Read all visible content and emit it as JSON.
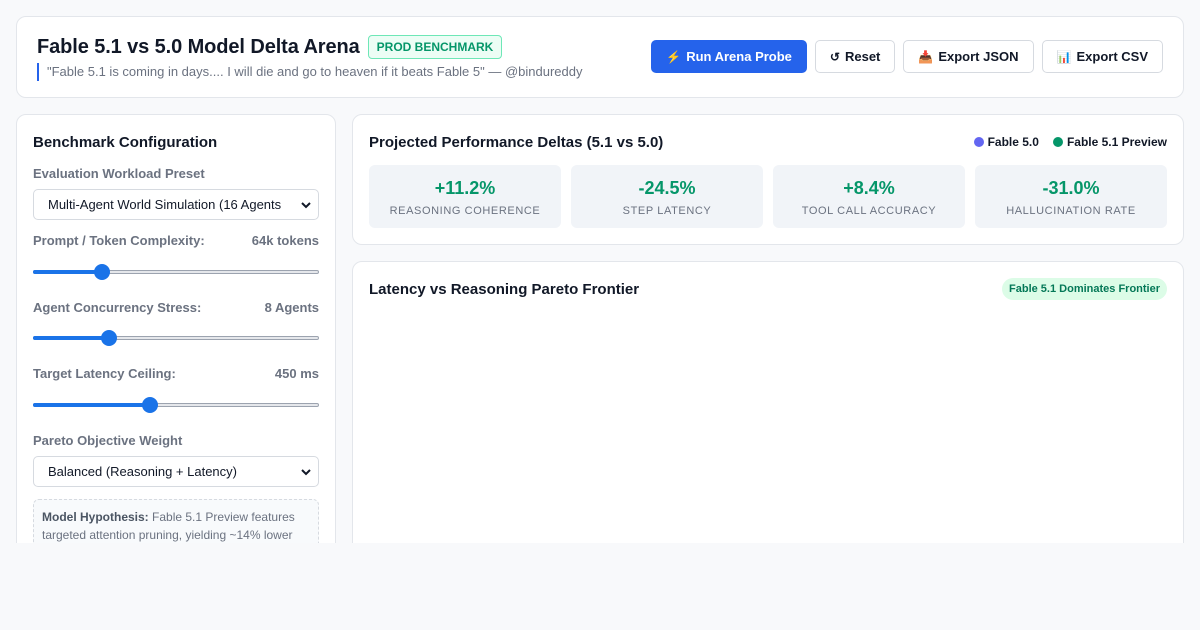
{
  "header": {
    "title": "Fable 5.1 vs 5.0 Model Delta Arena",
    "badge": "PROD BENCHMARK",
    "quote": "\"Fable 5.1 is coming in days.... I will die and go to heaven if it beats Fable 5\" — @bindureddy",
    "buttons": {
      "run": {
        "icon": "⚡",
        "label": "Run Arena Probe"
      },
      "reset": {
        "icon": "↺",
        "label": "Reset"
      },
      "export_json": {
        "icon": "📥",
        "label": "Export JSON"
      },
      "export_csv": {
        "icon": "📊",
        "label": "Export CSV"
      }
    }
  },
  "config": {
    "title": "Benchmark Configuration",
    "workload": {
      "label": "Evaluation Workload Preset",
      "value": "Multi-Agent World Simulation (16 Agents"
    },
    "complexity": {
      "label": "Prompt / Token Complexity:",
      "value": "64k tokens",
      "level": 0.24
    },
    "concurrency": {
      "label": "Agent Concurrency Stress:",
      "value": "8 Agents",
      "level": 0.265
    },
    "latency": {
      "label": "Target Latency Ceiling:",
      "value": "450 ms",
      "level": 0.41
    },
    "pareto_weight": {
      "label": "Pareto Objective Weight",
      "value": "Balanced (Reasoning + Latency)"
    },
    "hypothesis": {
      "label": "Model Hypothesis:",
      "text": "Fable 5.1 Preview features targeted attention pruning, yielding ~14% lower"
    }
  },
  "deltas": {
    "title": "Projected Performance Deltas (5.1 vs 5.0)",
    "legend": [
      {
        "name": "Fable 5.0",
        "color": "#6366f1"
      },
      {
        "name": "Fable 5.1 Preview",
        "color": "#059669"
      }
    ],
    "metrics": [
      {
        "value": "+11.2%",
        "label": "REASONING COHERENCE"
      },
      {
        "value": "-24.5%",
        "label": "STEP LATENCY"
      },
      {
        "value": "+8.4%",
        "label": "TOOL CALL ACCURACY"
      },
      {
        "value": "-31.0%",
        "label": "HALLUCINATION RATE"
      }
    ]
  },
  "pareto": {
    "title": "Latency vs Reasoning Pareto Frontier",
    "badge": "Fable 5.1 Dominates Frontier"
  }
}
